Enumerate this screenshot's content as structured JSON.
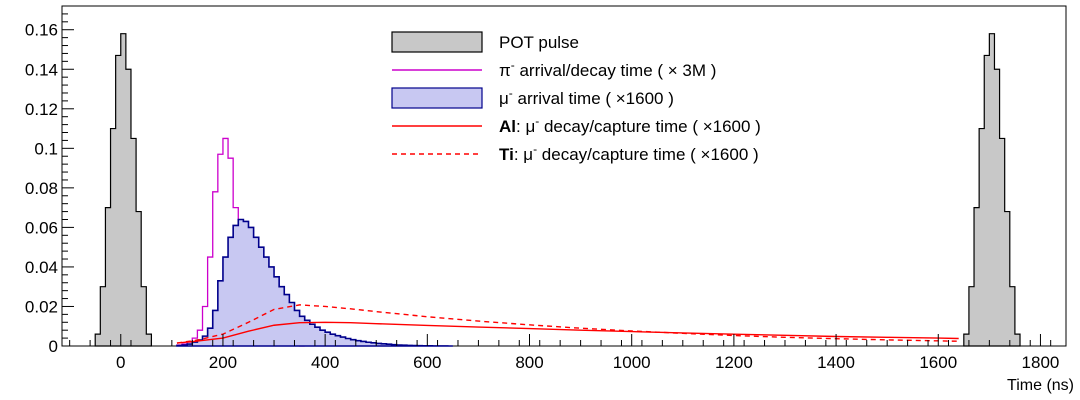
{
  "chart_data": {
    "type": "histogram",
    "title": "",
    "xlabel": "Time (ns)",
    "ylabel": "",
    "xlim": [
      -115,
      1850
    ],
    "ylim": [
      0,
      0.172
    ],
    "grid": false,
    "x_ticks": [
      0,
      200,
      400,
      600,
      800,
      1000,
      1200,
      1400,
      1600,
      1800
    ],
    "y_ticks": [
      0,
      0.02,
      0.04,
      0.06,
      0.08,
      0.1,
      0.12,
      0.14,
      0.16
    ],
    "x_tick_labels": [
      "0",
      "200",
      "400",
      "600",
      "800",
      "1000",
      "1200",
      "1400",
      "1600",
      "1800"
    ],
    "y_tick_labels": [
      "0",
      "0.02",
      "0.04",
      "0.06",
      "0.08",
      "0.1",
      "0.12",
      "0.14",
      "0.16"
    ],
    "legend": {
      "placement": "top-center",
      "entries": [
        {
          "key": "pot",
          "label": "POT pulse"
        },
        {
          "key": "pion",
          "label_symbol": "π",
          "label_sup": "-",
          "label_rest": " arrival/decay time ( × 3M )"
        },
        {
          "key": "muon",
          "label_symbol": "μ",
          "label_sup": "-",
          "label_rest": " arrival time ( ×1600 )"
        },
        {
          "key": "al",
          "label_bold": "Al",
          "label_mid": ": μ",
          "label_sup": "-",
          "label_rest": " decay/capture time ( ×1600 )"
        },
        {
          "key": "ti",
          "label_bold": "Ti",
          "label_mid": ": μ",
          "label_sup": "-",
          "label_rest": " decay/capture time ( ×1600 )"
        }
      ]
    },
    "series": [
      {
        "key": "pot",
        "style": "filled-step",
        "fill": "#c8c8c8",
        "stroke": "#000000",
        "bin_width": 10,
        "pulses": [
          {
            "x": [
              -50,
              -40,
              -30,
              -20,
              -10,
              0,
              10,
              20,
              30,
              40,
              50
            ],
            "y": [
              0.006,
              0.03,
              0.07,
              0.11,
              0.147,
              0.158,
              0.14,
              0.105,
              0.068,
              0.03,
              0.006
            ]
          },
          {
            "x": [
              1650,
              1660,
              1670,
              1680,
              1690,
              1700,
              1710,
              1720,
              1730,
              1740,
              1750
            ],
            "y": [
              0.006,
              0.03,
              0.07,
              0.11,
              0.147,
              0.158,
              0.14,
              0.105,
              0.068,
              0.03,
              0.006
            ]
          }
        ]
      },
      {
        "key": "pion",
        "style": "step",
        "stroke": "#cc00cc",
        "bin_width": 10,
        "x": [
          110,
          120,
          130,
          140,
          150,
          160,
          170,
          180,
          190,
          200,
          210,
          220,
          230,
          240,
          250,
          260,
          270,
          280,
          290,
          300,
          310,
          320,
          330,
          340,
          350
        ],
        "y": [
          0.0005,
          0.001,
          0.002,
          0.004,
          0.008,
          0.02,
          0.045,
          0.078,
          0.097,
          0.105,
          0.095,
          0.07,
          0.048,
          0.03,
          0.018,
          0.011,
          0.007,
          0.004,
          0.0025,
          0.0015,
          0.0008,
          0.0004,
          0.0002,
          0.0001,
          0
        ]
      },
      {
        "key": "muon",
        "style": "filled-step",
        "fill": "#c8c8f2",
        "stroke": "#00008b",
        "bin_width": 10,
        "x": [
          110,
          120,
          130,
          140,
          150,
          160,
          170,
          180,
          190,
          200,
          210,
          220,
          230,
          240,
          250,
          260,
          270,
          280,
          290,
          300,
          310,
          320,
          330,
          340,
          350,
          360,
          370,
          380,
          390,
          400,
          410,
          420,
          430,
          440,
          450,
          460,
          470,
          480,
          490,
          500,
          510,
          520,
          530,
          540,
          550,
          560,
          570,
          580,
          590,
          600,
          610,
          620,
          630,
          640
        ],
        "y": [
          0.0002,
          0.0005,
          0.001,
          0.002,
          0.003,
          0.005,
          0.009,
          0.018,
          0.033,
          0.045,
          0.055,
          0.061,
          0.064,
          0.063,
          0.06,
          0.055,
          0.05,
          0.045,
          0.04,
          0.035,
          0.03,
          0.026,
          0.022,
          0.018,
          0.015,
          0.013,
          0.011,
          0.0095,
          0.008,
          0.007,
          0.006,
          0.0052,
          0.0045,
          0.0038,
          0.0032,
          0.0027,
          0.0023,
          0.0019,
          0.0016,
          0.0013,
          0.0011,
          0.0009,
          0.0007,
          0.0005,
          0.0004,
          0.0003,
          0.0002,
          0.00015,
          0.0001,
          8e-05,
          5e-05,
          3e-05,
          2e-05,
          0
        ]
      },
      {
        "key": "al",
        "style": "line",
        "stroke": "#ff0000",
        "dash": false,
        "x": [
          110,
          150,
          200,
          250,
          300,
          350,
          400,
          450,
          500,
          600,
          700,
          800,
          900,
          1000,
          1100,
          1200,
          1300,
          1400,
          1500,
          1600,
          1640
        ],
        "y": [
          0.0015,
          0.0025,
          0.004,
          0.0075,
          0.0105,
          0.0118,
          0.012,
          0.0118,
          0.0113,
          0.0104,
          0.0096,
          0.0088,
          0.008,
          0.0073,
          0.0066,
          0.006,
          0.0054,
          0.0048,
          0.0044,
          0.004,
          0.0038
        ]
      },
      {
        "key": "ti",
        "style": "line",
        "stroke": "#ff0000",
        "dash": true,
        "x": [
          110,
          150,
          200,
          250,
          300,
          350,
          400,
          450,
          500,
          600,
          700,
          800,
          900,
          1000,
          1100,
          1200,
          1300,
          1400,
          1500,
          1600,
          1640
        ],
        "y": [
          0.0015,
          0.003,
          0.006,
          0.012,
          0.0185,
          0.0208,
          0.02,
          0.0188,
          0.0174,
          0.0148,
          0.0126,
          0.0107,
          0.009,
          0.0076,
          0.0064,
          0.0053,
          0.0044,
          0.0037,
          0.0031,
          0.0026,
          0.0024
        ]
      }
    ]
  }
}
